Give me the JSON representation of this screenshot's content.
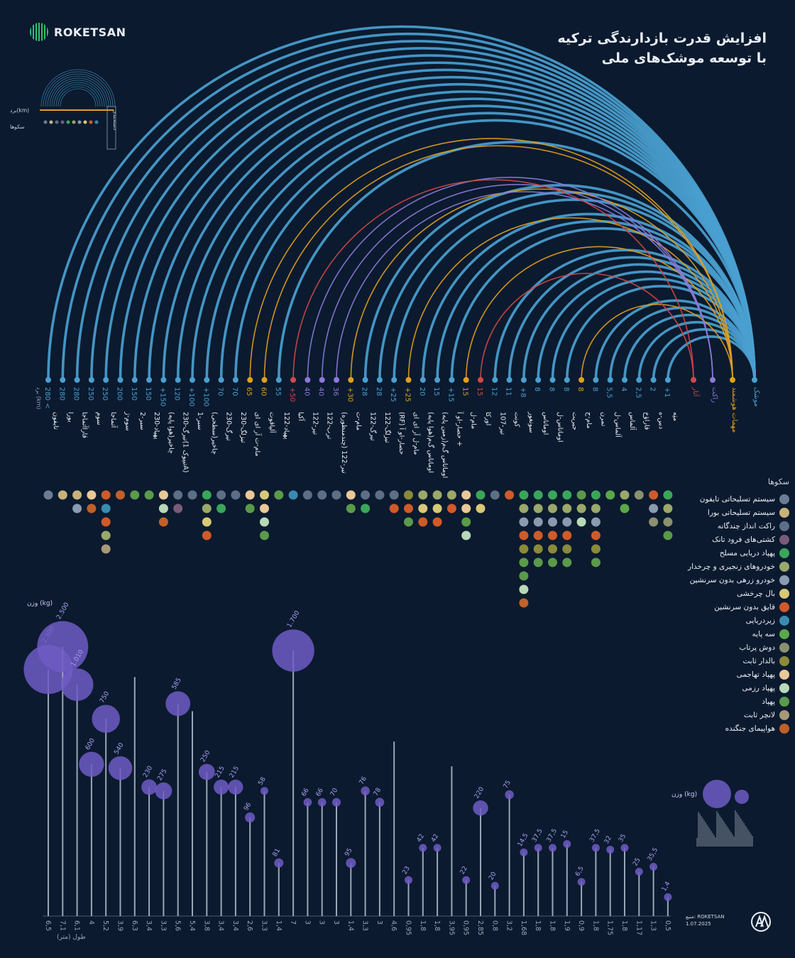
{
  "title": {
    "line1": "افزایش قدرت بازدارندگی ترکیه",
    "line2": "با توسعه موشک‌های ملی"
  },
  "brand": {
    "name": "ROKETSAN"
  },
  "source": {
    "label": "منبع: ROKETSAN",
    "date": "1.07.2025"
  },
  "colors": {
    "background": "#0b1a2e",
    "missile": "#4a9fd0",
    "rocket": "#8b7ad8",
    "smart": "#e0a020",
    "atar": "#d04848",
    "weight": "#6f5cc4"
  },
  "chart_data": {
    "type": "arc",
    "range_axis_label": "برد (km)",
    "length_axis_label": "طول (متر)",
    "weight_label": "وزن (kg)",
    "categories_legend": [
      "موشک",
      "مهمات هوشمند",
      "راکت",
      "آتار"
    ],
    "platforms_title": "سکوها",
    "platforms": [
      {
        "name": "سیستم تسلیحاتی تایفون",
        "color": "#6b7d95"
      },
      {
        "name": "سیستم تسلیحاتی بورا",
        "color": "#c9b27a"
      },
      {
        "name": "راکت انداز چندگانه",
        "color": "#5d6f86"
      },
      {
        "name": "کشتی‌های فرود تانک",
        "color": "#7a5a7a"
      },
      {
        "name": "پهپاد دریایی مسلح",
        "color": "#3aa65a"
      },
      {
        "name": "خودروهای زنجیری و چرخدار",
        "color": "#9aa86a"
      },
      {
        "name": "خودرو زرهی بدون سرنشین",
        "color": "#8a9ab0"
      },
      {
        "name": "بال چرخشی",
        "color": "#d8c878"
      },
      {
        "name": "قایق بدون سرنشین",
        "color": "#d05a2a"
      },
      {
        "name": "زیردریایی",
        "color": "#3a8ab0"
      },
      {
        "name": "سه پایه",
        "color": "#5aa84a"
      },
      {
        "name": "دوش پرتاب",
        "color": "#8a9070"
      },
      {
        "name": "بالدار ثابت",
        "color": "#8a8a3a"
      },
      {
        "name": "پهپاد تهاجمی",
        "color": "#e8c898"
      },
      {
        "name": "پهپاد رزمی",
        "color": "#b8d8b8"
      },
      {
        "name": "پهپاد",
        "color": "#5a9a4a"
      },
      {
        "name": "لانچر ثابت",
        "color": "#a89878"
      },
      {
        "name": "هواپیمای جنگنده",
        "color": "#c0602a"
      }
    ],
    "items": [
      {
        "name": "تایفون",
        "range": "280 <",
        "range_value": 280,
        "cat": "missile",
        "length": "6,5",
        "length_value": 6.5,
        "weight": "2.300",
        "weight_value": 2300,
        "platforms": [
          0
        ]
      },
      {
        "name": "بورا",
        "range": "280",
        "range_value": 280,
        "cat": "missile",
        "length": "7,1",
        "length_value": 7.1,
        "weight": "2.500",
        "weight_value": 2500,
        "platforms": [
          1
        ]
      },
      {
        "name": "قاراآتماجا",
        "range": "280",
        "range_value": 280,
        "cat": "missile",
        "length": "6,1",
        "length_value": 6.1,
        "weight": "1.010",
        "weight_value": 1010,
        "platforms": [
          1,
          6
        ]
      },
      {
        "name": "سوم",
        "range": "250",
        "range_value": 250,
        "cat": "missile",
        "length": "4",
        "length_value": 4,
        "weight": "600",
        "weight_value": 600,
        "platforms": [
          13,
          17
        ]
      },
      {
        "name": "آتماجا",
        "range": "250",
        "range_value": 250,
        "cat": "missile",
        "length": "5,2",
        "length_value": 5.2,
        "weight": "750",
        "weight_value": 750,
        "platforms": [
          8,
          9,
          8,
          5,
          16
        ]
      },
      {
        "name": "سوم-ژ",
        "range": "200",
        "range_value": 200,
        "cat": "missile",
        "length": "3,9",
        "length_value": 3.9,
        "weight": "540",
        "weight_value": 540,
        "platforms": [
          17
        ]
      },
      {
        "name": "سبر-2",
        "range": "150",
        "range_value": 150,
        "cat": "missile",
        "length": "6,3",
        "length_value": 6.3,
        "weight": "",
        "weight_value": 0,
        "platforms": [
          15
        ]
      },
      {
        "name": "پهپاد-230",
        "range": "150",
        "range_value": 150,
        "cat": "missile",
        "length": "3,4",
        "length_value": 3.4,
        "weight": "230",
        "weight_value": 230,
        "platforms": [
          15
        ]
      },
      {
        "name": "چاخیر(هوا پایه)",
        "range": "+150",
        "range_value": 150,
        "cat": "missile",
        "length": "3,3",
        "length_value": 3.3,
        "weight": "275",
        "weight_value": 275,
        "platforms": [
          13,
          14,
          17
        ]
      },
      {
        "name": "تیرگ-230(تیپوک 1A)",
        "range": "120",
        "range_value": 120,
        "cat": "missile",
        "length": "5,6",
        "length_value": 5.6,
        "weight": "585",
        "weight_value": 585,
        "platforms": [
          2,
          3
        ]
      },
      {
        "name": "سبر-1",
        "range": "+100",
        "range_value": 100,
        "cat": "missile",
        "length": "5,4",
        "length_value": 5.4,
        "weight": "",
        "weight_value": 0,
        "platforms": [
          2
        ]
      },
      {
        "name": "چاخیر(سطحی)",
        "range": "+100",
        "range_value": 100,
        "cat": "missile",
        "length": "3,8",
        "length_value": 3.8,
        "weight": "250",
        "weight_value": 250,
        "platforms": [
          4,
          5,
          7,
          8
        ]
      },
      {
        "name": "تیرگ-230",
        "range": "70",
        "range_value": 70,
        "cat": "missile",
        "length": "3,4",
        "length_value": 3.4,
        "weight": "215",
        "weight_value": 215,
        "platforms": [
          2,
          4
        ]
      },
      {
        "name": "تیزلگ-230",
        "range": "70",
        "range_value": 70,
        "cat": "missile",
        "length": "3,4",
        "length_value": 3.4,
        "weight": "215",
        "weight_value": 215,
        "platforms": [
          2
        ]
      },
      {
        "name": "مام-ت آر ای ای",
        "range": "65",
        "range_value": 65,
        "cat": "smart",
        "length": "2,6",
        "length_value": 2.6,
        "weight": "96",
        "weight_value": 96,
        "platforms": [
          13,
          15
        ]
      },
      {
        "name": "آلپاقوت",
        "range": "60",
        "range_value": 60,
        "cat": "smart",
        "length": "3,3",
        "length_value": 3.3,
        "weight": "58",
        "weight_value": 58,
        "platforms": [
          7,
          13,
          14,
          15
        ]
      },
      {
        "name": "پهپاد-122",
        "range": "55",
        "range_value": 55,
        "cat": "missile",
        "length": "1,4",
        "length_value": 1.4,
        "weight": "81",
        "weight_value": 81,
        "platforms": [
          15
        ]
      },
      {
        "name": "آکیا",
        "range": "+50",
        "range_value": 50,
        "cat": "atar",
        "length": "7",
        "length_value": 7,
        "weight": "1.700",
        "weight_value": 1700,
        "platforms": [
          9
        ]
      },
      {
        "name": "تیر-122",
        "range": "40",
        "range_value": 40,
        "cat": "rocket",
        "length": "3",
        "length_value": 3,
        "weight": "66",
        "weight_value": 66,
        "platforms": [
          2
        ]
      },
      {
        "name": "ترب-122",
        "range": "40",
        "range_value": 40,
        "cat": "rocket",
        "length": "3",
        "length_value": 3,
        "weight": "66",
        "weight_value": 66,
        "platforms": [
          2
        ]
      },
      {
        "name": "تیر-122 (چندمنظوره)",
        "range": "36",
        "range_value": 36,
        "cat": "rocket",
        "length": "3",
        "length_value": 3,
        "weight": "70",
        "weight_value": 70,
        "platforms": [
          2
        ]
      },
      {
        "name": "مام-ت",
        "range": "+30",
        "range_value": 30,
        "cat": "smart",
        "length": "1,4",
        "length_value": 1.4,
        "weight": "95",
        "weight_value": 95,
        "platforms": [
          13,
          15
        ]
      },
      {
        "name": "تیرگ-122",
        "range": "28",
        "range_value": 28,
        "cat": "missile",
        "length": "3,3",
        "length_value": 3.3,
        "weight": "76",
        "weight_value": 76,
        "platforms": [
          2,
          4
        ]
      },
      {
        "name": "تیزلگ-122",
        "range": "28",
        "range_value": 28,
        "cat": "missile",
        "length": "3",
        "length_value": 3,
        "weight": "78",
        "weight_value": 78,
        "platforms": [
          2
        ]
      },
      {
        "name": "(RF) حصار-او آ",
        "range": "+25",
        "range_value": 25,
        "cat": "missile",
        "length": "4,6",
        "length_value": 4.6,
        "weight": "",
        "weight_value": 0,
        "platforms": [
          2,
          8
        ]
      },
      {
        "name": "مام-ل آر ای ای",
        "range": "+25",
        "range_value": 25,
        "cat": "smart",
        "length": "0,95",
        "length_value": 0.95,
        "weight": "23",
        "weight_value": 23,
        "platforms": [
          12,
          8,
          15
        ]
      },
      {
        "name": "اوماتاس گ‌م(هوا پایه)",
        "range": "20",
        "range_value": 20,
        "cat": "missile",
        "length": "1,8",
        "length_value": 1.8,
        "weight": "42",
        "weight_value": 42,
        "platforms": [
          5,
          7,
          8
        ]
      },
      {
        "name": "اوماتاس گ‌م(زمین پایه)",
        "range": "15",
        "range_value": 15,
        "cat": "missile",
        "length": "1,8",
        "length_value": 1.8,
        "weight": "42",
        "weight_value": 42,
        "platforms": [
          5,
          7,
          8
        ]
      },
      {
        "name": "حصار-او آ +",
        "range": "+15",
        "range_value": 15,
        "cat": "missile",
        "length": "3,95",
        "length_value": 3.95,
        "weight": "",
        "weight_value": 0,
        "platforms": [
          5,
          8
        ]
      },
      {
        "name": "مام-ل",
        "range": "15",
        "range_value": 15,
        "cat": "smart",
        "length": "0,95",
        "length_value": 0.95,
        "weight": "22",
        "weight_value": 22,
        "platforms": [
          13,
          13,
          15,
          14
        ]
      },
      {
        "name": "اورکا",
        "range": "15",
        "range_value": 15,
        "cat": "atar",
        "length": "2,85",
        "length_value": 2.85,
        "weight": "220",
        "weight_value": 220,
        "platforms": [
          4,
          7
        ]
      },
      {
        "name": "تیر-107",
        "range": "12",
        "range_value": 12,
        "cat": "missile",
        "length": "0,8",
        "length_value": 0.8,
        "weight": "20",
        "weight_value": 20,
        "platforms": [
          2
        ]
      },
      {
        "name": "کونت",
        "range": "11",
        "range_value": 11,
        "cat": "missile",
        "length": "3,2",
        "length_value": 3.2,
        "weight": "75",
        "weight_value": 75,
        "platforms": [
          8
        ]
      },
      {
        "name": "سونغور",
        "range": "+8",
        "range_value": 8,
        "cat": "missile",
        "length": "1,68",
        "length_value": 1.68,
        "weight": "14,5",
        "weight_value": 14.5,
        "platforms": [
          4,
          5,
          6,
          8,
          12,
          15,
          15,
          14,
          17
        ]
      },
      {
        "name": "اوماتاس",
        "range": "8",
        "range_value": 8,
        "cat": "missile",
        "length": "1,8",
        "length_value": 1.8,
        "weight": "37,5",
        "weight_value": 37.5,
        "platforms": [
          4,
          5,
          6,
          8,
          12,
          15
        ]
      },
      {
        "name": "اوماتاس-ل",
        "range": "8",
        "range_value": 8,
        "cat": "missile",
        "length": "1,8",
        "length_value": 1.8,
        "weight": "37,5",
        "weight_value": 37.5,
        "platforms": [
          4,
          5,
          6,
          8,
          12,
          15
        ]
      },
      {
        "name": "جیریت",
        "range": "8",
        "range_value": 8,
        "cat": "missile",
        "length": "1,9",
        "length_value": 1.9,
        "weight": "15",
        "weight_value": 15,
        "platforms": [
          4,
          5,
          6,
          8,
          12,
          15
        ]
      },
      {
        "name": "مام-ج",
        "range": "8",
        "range_value": 8,
        "cat": "smart",
        "length": "0,9",
        "length_value": 0.9,
        "weight": "6,5",
        "weight_value": 6.5,
        "platforms": [
          15,
          5,
          14
        ]
      },
      {
        "name": "تمرن",
        "range": "8",
        "range_value": 8,
        "cat": "missile",
        "length": "1,8",
        "length_value": 1.8,
        "weight": "37,5",
        "weight_value": 37.5,
        "platforms": [
          4,
          5,
          6,
          8,
          12,
          15
        ]
      },
      {
        "name": "آلماس-ل",
        "range": "5,5",
        "range_value": 5.5,
        "cat": "missile",
        "length": "1,75",
        "length_value": 1.75,
        "weight": "32",
        "weight_value": 32,
        "platforms": [
          10
        ]
      },
      {
        "name": "آلماس",
        "range": "4",
        "range_value": 4,
        "cat": "missile",
        "length": "1,8",
        "length_value": 1.8,
        "weight": "35",
        "weight_value": 35,
        "platforms": [
          5,
          10
        ]
      },
      {
        "name": "قاراؤخ",
        "range": "2,5",
        "range_value": 2.5,
        "cat": "missile",
        "length": "1,17",
        "length_value": 1.17,
        "weight": "25",
        "weight_value": 25,
        "platforms": [
          11
        ]
      },
      {
        "name": "دس-ه",
        "range": "2",
        "range_value": 2,
        "cat": "missile",
        "length": "1,3",
        "length_value": 1.3,
        "weight": "35,5",
        "weight_value": 35.5,
        "platforms": [
          8,
          6,
          11
        ]
      },
      {
        "name": "متِه",
        "range": "+1",
        "range_value": 1,
        "cat": "missile",
        "length": "0,5",
        "length_value": 0.5,
        "weight": "1,4",
        "weight_value": 1.4,
        "platforms": [
          4,
          5,
          11,
          15
        ]
      }
    ],
    "mini_guide": {
      "range_label": "برد(km)",
      "platforms_label": "سکوها",
      "category_label": "دسته‌بندی",
      "weight_label": "وزن (kg)"
    }
  }
}
